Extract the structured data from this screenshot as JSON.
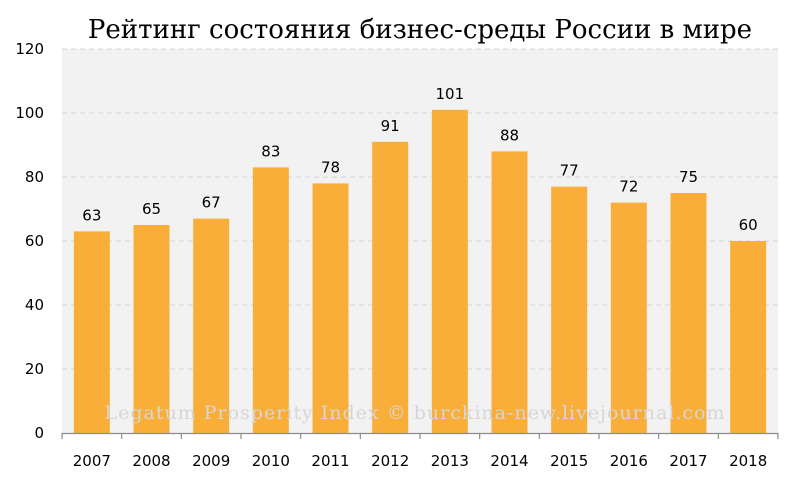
{
  "chart_data": {
    "type": "bar",
    "title": "Рейтинг состояния бизнес-среды России в мире",
    "categories": [
      "2007",
      "2008",
      "2009",
      "2010",
      "2011",
      "2012",
      "2013",
      "2014",
      "2015",
      "2016",
      "2017",
      "2018"
    ],
    "values": [
      63,
      65,
      67,
      83,
      78,
      91,
      101,
      88,
      77,
      72,
      75,
      60
    ],
    "data_labels": [
      "63",
      "65",
      "67",
      "83",
      "78",
      "91",
      "101",
      "88",
      "77",
      "72",
      "75",
      "60"
    ],
    "ylim": [
      0,
      120
    ],
    "yticks": [
      0,
      20,
      40,
      60,
      80,
      100,
      120
    ],
    "ytick_labels": [
      "0",
      "20",
      "40",
      "60",
      "80",
      "100",
      "120"
    ],
    "grid": true,
    "bar_color": "#f9ae3a",
    "plot_background": "#f2f2f2",
    "watermark": "Legatum Prosperity Index © burckina-new.livejournal.com"
  }
}
